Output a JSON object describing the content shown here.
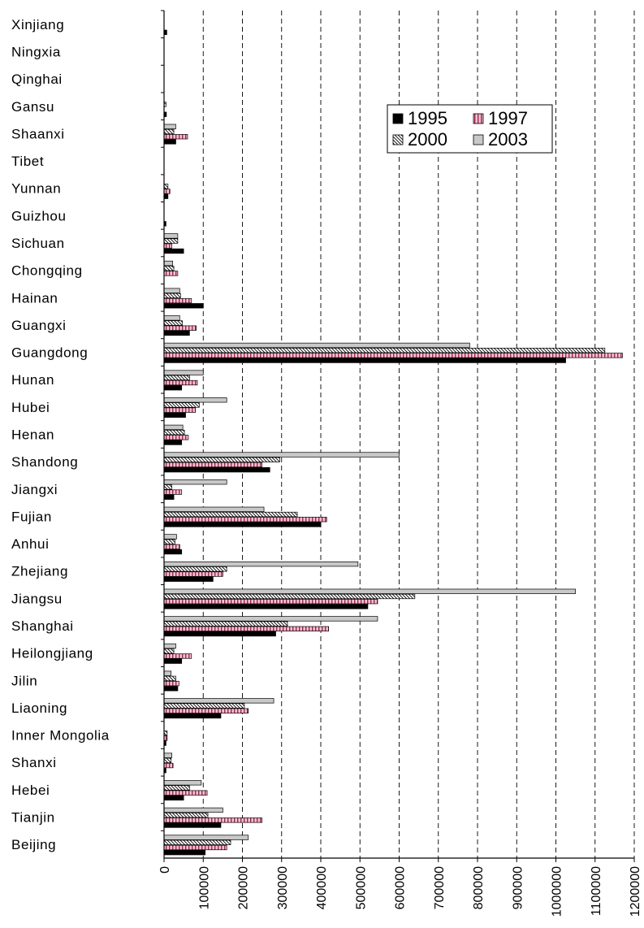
{
  "chart_data": {
    "type": "bar",
    "orientation": "horizontal",
    "categories": [
      "Xinjiang",
      "Ningxia",
      "Qinghai",
      "Gansu",
      "Shaanxi",
      "Tibet",
      "Yunnan",
      "Guizhou",
      "Sichuan",
      "Chongqing",
      "Hainan",
      "Guangxi",
      "Guangdong",
      "Hunan",
      "Hubei",
      "Henan",
      "Shandong",
      "Jiangxi",
      "Fujian",
      "Anhui",
      "Zhejiang",
      "Jiangsu",
      "Shanghai",
      "Heilongjiang",
      "Jilin",
      "Liaoning",
      "Inner Mongolia",
      "Shanxi",
      "Hebei",
      "Tianjin",
      "Beijing"
    ],
    "series": [
      {
        "name": "1995",
        "pattern": "solid-black",
        "values": [
          7000,
          0,
          0,
          6000,
          30000,
          0,
          10000,
          5000,
          50000,
          0,
          100000,
          65000,
          1025000,
          45000,
          55000,
          45000,
          270000,
          25000,
          400000,
          45000,
          125000,
          520000,
          285000,
          45000,
          35000,
          145000,
          5000,
          5000,
          50000,
          145000,
          105000
        ]
      },
      {
        "name": "1997",
        "pattern": "pink-vertical-stripes",
        "values": [
          0,
          0,
          0,
          0,
          60000,
          0,
          15000,
          0,
          20000,
          35000,
          70000,
          82000,
          1170000,
          85000,
          80000,
          62000,
          250000,
          45000,
          415000,
          40000,
          150000,
          545000,
          420000,
          70000,
          38000,
          215000,
          8000,
          23000,
          110000,
          250000,
          160000
        ]
      },
      {
        "name": "2000",
        "pattern": "diagonal-hatch",
        "values": [
          0,
          0,
          0,
          5000,
          25000,
          0,
          10000,
          0,
          35000,
          25000,
          42000,
          47000,
          1125000,
          65000,
          90000,
          52000,
          295000,
          20000,
          340000,
          28000,
          160000,
          640000,
          315000,
          25000,
          30000,
          205000,
          8000,
          18000,
          65000,
          112000,
          170000
        ]
      },
      {
        "name": "2003",
        "pattern": "light-gray",
        "values": [
          0,
          0,
          0,
          0,
          30000,
          0,
          0,
          0,
          35000,
          22000,
          40000,
          40000,
          780000,
          100000,
          160000,
          48000,
          600000,
          160000,
          255000,
          32000,
          495000,
          1050000,
          545000,
          30000,
          18000,
          280000,
          0,
          20000,
          95000,
          150000,
          215000
        ]
      }
    ],
    "xlim": [
      0,
      1200000
    ],
    "xticks": [
      "0",
      "100000",
      "200000",
      "300000",
      "400000",
      "500000",
      "600000",
      "700000",
      "800000",
      "900000",
      "1000000",
      "1100000",
      "1200000"
    ],
    "grid": "vertical dashed",
    "legend_position": "top-right",
    "colors": {
      "1995": "#000000",
      "1997": "#f2b8cc",
      "2000": "#ffffff",
      "2003": "#c8c8c8"
    }
  }
}
